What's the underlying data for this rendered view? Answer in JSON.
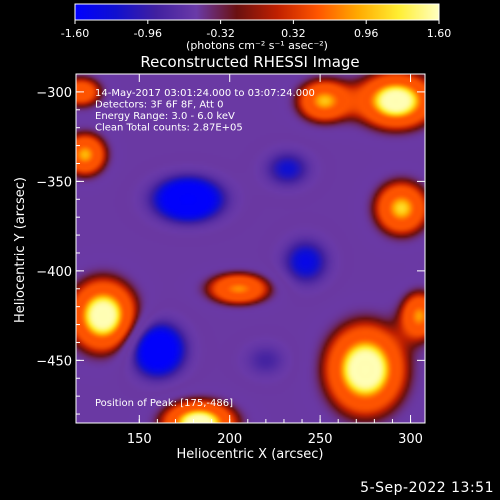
{
  "chart_data": {
    "type": "heatmap",
    "title": "Reconstructed RHESSI Image",
    "xlabel": "Heliocentric X (arcsec)",
    "ylabel": "Heliocentric Y (arcsec)",
    "xlim": [
      115,
      308
    ],
    "ylim": [
      -485,
      -290
    ],
    "xticks": [
      150,
      200,
      250,
      300
    ],
    "yticks": [
      -300,
      -350,
      -400,
      -450
    ],
    "colorbar": {
      "min": -1.6,
      "max": 1.6,
      "ticks": [
        "-1.60",
        "-0.96",
        "-0.32",
        "0.32",
        "0.96",
        "1.60"
      ],
      "label": "(photons cm⁻² s⁻¹ asec⁻²)",
      "colors": [
        "#0000ff",
        "#1010d0",
        "#4020a0",
        "#6a3aa8",
        "#6a1010",
        "#c02000",
        "#ff5500",
        "#ffaa00",
        "#ffee33",
        "#ffffc0"
      ]
    },
    "annotations": [
      "14-May-2017 03:01:24.000 to 03:07:24.000",
      "Detectors: 3F 6F 8F, Att 0",
      "Energy Range: 3.0 - 6.0 keV",
      "Clean    Total counts: 2.87E+05"
    ],
    "peak_label": "Position of Peak: [175,-486]",
    "peak": [
      175,
      -486
    ],
    "sources": [
      {
        "x": 177,
        "y": -360,
        "v": -1.45,
        "sx": 14,
        "sy": 9
      },
      {
        "x": 160,
        "y": -444,
        "v": -1.4,
        "sx": 11,
        "sy": 11
      },
      {
        "x": 242,
        "y": -395,
        "v": -0.9,
        "sx": 10,
        "sy": 10
      },
      {
        "x": 232,
        "y": -343,
        "v": -0.8,
        "sx": 10,
        "sy": 8
      },
      {
        "x": 275,
        "y": -455,
        "v": 1.7,
        "sx": 14,
        "sy": 16
      },
      {
        "x": 130,
        "y": -425,
        "v": 1.6,
        "sx": 12,
        "sy": 13
      },
      {
        "x": 183,
        "y": -485,
        "v": 1.6,
        "sx": 13,
        "sy": 8
      },
      {
        "x": 292,
        "y": -305,
        "v": 1.6,
        "sx": 14,
        "sy": 10
      },
      {
        "x": 252,
        "y": -305,
        "v": 1.0,
        "sx": 10,
        "sy": 8
      },
      {
        "x": 295,
        "y": -365,
        "v": 1.1,
        "sx": 10,
        "sy": 10
      },
      {
        "x": 120,
        "y": -335,
        "v": 1.0,
        "sx": 8,
        "sy": 8
      },
      {
        "x": 205,
        "y": -410,
        "v": 0.9,
        "sx": 12,
        "sy": 6
      },
      {
        "x": 118,
        "y": -300,
        "v": 0.6,
        "sx": 8,
        "sy": 6
      },
      {
        "x": 305,
        "y": -425,
        "v": 0.9,
        "sx": 7,
        "sy": 9
      },
      {
        "x": 220,
        "y": -450,
        "v": -0.6,
        "sx": 10,
        "sy": 8
      }
    ]
  },
  "footer": {
    "timestamp": "5-Sep-2022 13:51"
  }
}
